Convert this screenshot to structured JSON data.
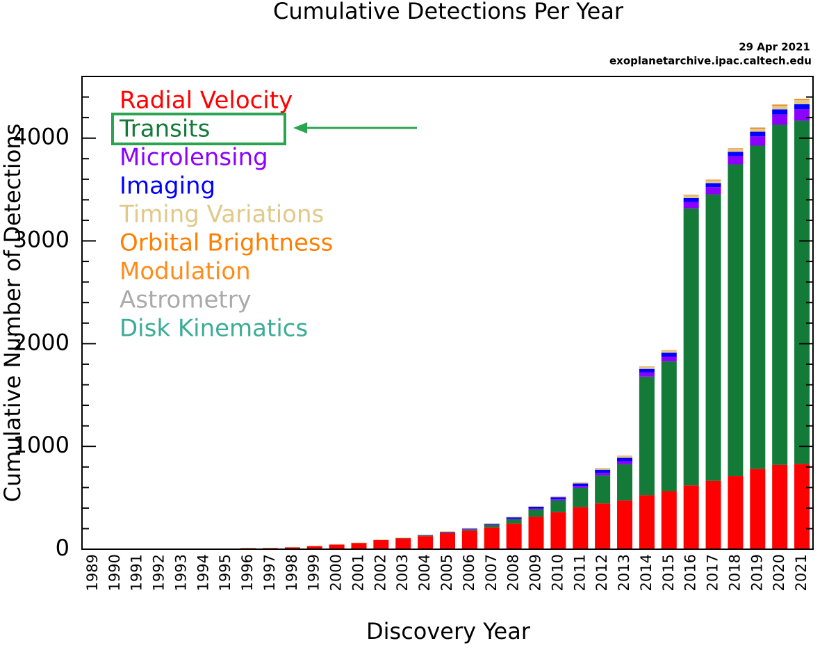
{
  "chart_data": {
    "type": "stacked_bar",
    "title": "Cumulative Detections Per Year",
    "annotations": [
      "29 Apr 2021",
      "exoplanetarchive.ipac.caltech.edu"
    ],
    "xlabel": "Discovery Year",
    "ylabel": "Cumulative Number of Detections",
    "categories": [
      "1989",
      "1990",
      "1991",
      "1992",
      "1993",
      "1994",
      "1995",
      "1996",
      "1997",
      "1998",
      "1999",
      "2000",
      "2001",
      "2002",
      "2003",
      "2004",
      "2005",
      "2006",
      "2007",
      "2008",
      "2009",
      "2010",
      "2011",
      "2012",
      "2013",
      "2014",
      "2015",
      "2016",
      "2017",
      "2018",
      "2019",
      "2020",
      "2021"
    ],
    "series": [
      {
        "name": "Radial Velocity",
        "color": "#ff0000",
        "values": [
          1,
          1,
          1,
          1,
          1,
          1,
          4,
          10,
          11,
          17,
          30,
          45,
          60,
          88,
          105,
          127,
          156,
          180,
          212,
          248,
          315,
          360,
          410,
          445,
          475,
          525,
          565,
          620,
          665,
          710,
          780,
          820,
          830
        ]
      },
      {
        "name": "Transits",
        "color": "#137a37",
        "values": [
          0,
          0,
          0,
          0,
          0,
          0,
          0,
          0,
          0,
          0,
          0,
          0,
          0,
          1,
          2,
          5,
          5,
          12,
          25,
          43,
          71,
          114,
          186,
          273,
          351,
          1154,
          1263,
          2697,
          2788,
          3034,
          3147,
          3310,
          3340
        ]
      },
      {
        "name": "Microlensing",
        "color": "#8b00ff",
        "values": [
          0,
          0,
          0,
          0,
          0,
          0,
          0,
          0,
          0,
          0,
          0,
          0,
          0,
          0,
          1,
          2,
          4,
          4,
          4,
          7,
          9,
          12,
          18,
          25,
          30,
          40,
          45,
          60,
          70,
          80,
          90,
          100,
          110
        ]
      },
      {
        "name": "Imaging",
        "color": "#0000ff",
        "values": [
          0,
          0,
          0,
          0,
          0,
          0,
          0,
          0,
          0,
          0,
          0,
          0,
          0,
          0,
          0,
          3,
          4,
          4,
          5,
          12,
          18,
          20,
          25,
          30,
          33,
          35,
          38,
          40,
          40,
          42,
          45,
          50,
          50
        ]
      },
      {
        "name": "Timing Variations",
        "color": "#e0c98a",
        "values": [
          0,
          0,
          0,
          2,
          2,
          3,
          3,
          3,
          3,
          3,
          3,
          4,
          4,
          5,
          5,
          5,
          5,
          5,
          5,
          6,
          7,
          10,
          12,
          15,
          17,
          20,
          22,
          25,
          26,
          28,
          30,
          35,
          40
        ]
      },
      {
        "name": "Orbital Brightness",
        "color": "#ff7f00",
        "values": [
          0,
          0,
          0,
          0,
          0,
          0,
          0,
          0,
          0,
          0,
          0,
          0,
          0,
          0,
          0,
          0,
          0,
          0,
          0,
          0,
          0,
          0,
          1,
          2,
          3,
          4,
          4,
          6,
          6,
          6,
          8,
          9,
          9
        ]
      },
      {
        "name": "Modulation",
        "color": "#ff8c1a",
        "values": [
          0,
          0,
          0,
          0,
          0,
          0,
          0,
          0,
          0,
          0,
          0,
          0,
          0,
          0,
          0,
          0,
          0,
          0,
          0,
          0,
          0,
          0,
          0,
          0,
          0,
          0,
          0,
          0,
          0,
          0,
          2,
          2,
          2
        ]
      },
      {
        "name": "Astrometry",
        "color": "#aaaaaa",
        "values": [
          0,
          0,
          0,
          0,
          0,
          0,
          0,
          0,
          0,
          0,
          0,
          0,
          0,
          0,
          0,
          0,
          0,
          0,
          0,
          0,
          0,
          0,
          0,
          0,
          1,
          1,
          1,
          1,
          1,
          1,
          1,
          1,
          1
        ]
      },
      {
        "name": "Disk Kinematics",
        "color": "#3cac98",
        "values": [
          0,
          0,
          0,
          0,
          0,
          0,
          0,
          0,
          0,
          0,
          0,
          0,
          0,
          0,
          0,
          0,
          0,
          0,
          0,
          0,
          0,
          0,
          0,
          0,
          0,
          0,
          0,
          0,
          0,
          0,
          1,
          1,
          1
        ]
      }
    ],
    "highlight_series": 1,
    "ylim": [
      0,
      4600
    ],
    "yticks": [
      0,
      1000,
      2000,
      3000,
      4000
    ],
    "yminorticks": [
      200,
      400,
      600,
      800,
      1200,
      1400,
      1600,
      1800,
      2200,
      2400,
      2600,
      2800,
      3200,
      3400,
      3600,
      3800,
      4200,
      4400
    ]
  }
}
